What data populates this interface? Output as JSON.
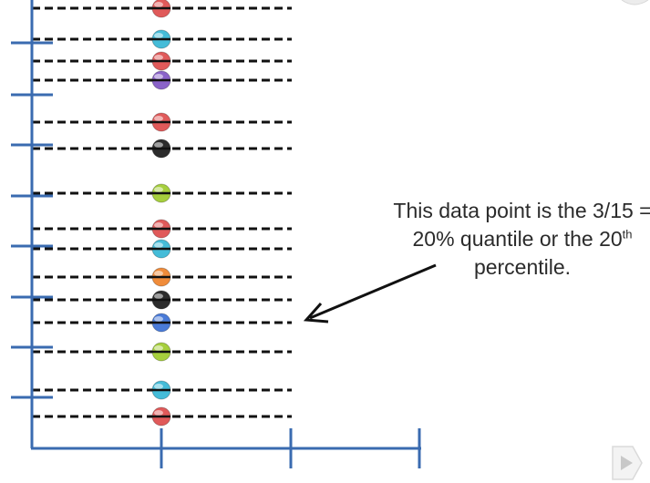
{
  "annotation": {
    "line1": "This data point is the 3/15 =",
    "line2_prefix": "20% quantile or the 20",
    "line2_sup": "th",
    "line3": "percentile."
  },
  "axis_color": "#3a6bb0",
  "points": [
    {
      "name": "point-red",
      "color": "#e05a5a",
      "row": 1
    },
    {
      "name": "point-cyan",
      "color": "#45bcd8",
      "row": 2
    },
    {
      "name": "point-red",
      "color": "#e05a5a",
      "row": 3
    },
    {
      "name": "point-purple",
      "color": "#8a63c9",
      "row": 4
    },
    {
      "name": "point-red",
      "color": "#e05a5a",
      "row": 5
    },
    {
      "name": "point-black",
      "color": "#2c2c2c",
      "row": 6
    },
    {
      "name": "point-green",
      "color": "#a6cf3d",
      "row": 7
    },
    {
      "name": "point-red",
      "color": "#e05a5a",
      "row": 8
    },
    {
      "name": "point-cyan",
      "color": "#45bcd8",
      "row": 9
    },
    {
      "name": "point-orange",
      "color": "#f08c3a",
      "row": 10
    },
    {
      "name": "point-black",
      "color": "#2c2c2c",
      "row": 11
    },
    {
      "name": "point-blue",
      "color": "#4a7bd8",
      "row": 12
    },
    {
      "name": "point-green",
      "color": "#a6cf3d",
      "row": 13
    },
    {
      "name": "point-cyan",
      "color": "#45bcd8",
      "row": 14
    },
    {
      "name": "point-red",
      "color": "#e05a5a",
      "row": 15
    }
  ],
  "icons": [
    "play-icon",
    "corner-icon"
  ]
}
